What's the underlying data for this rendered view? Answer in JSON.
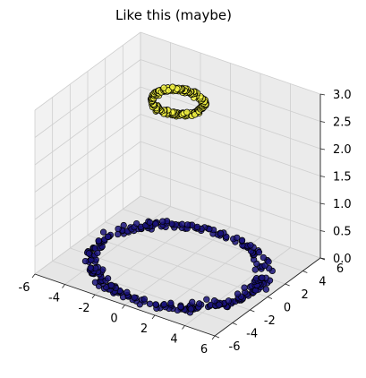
{
  "chart_data": {
    "type": "scatter",
    "projection": "3d",
    "title": "Like this (maybe)",
    "xlim": [
      -6,
      6
    ],
    "ylim": [
      -6,
      6
    ],
    "zlim": [
      0,
      3
    ],
    "xticks": [
      "-6",
      "-4",
      "-2",
      "0",
      "2",
      "4",
      "6"
    ],
    "yticks": [
      "-6",
      "-4",
      "-2",
      "0",
      "2",
      "4",
      "6"
    ],
    "zticks": [
      "0.0",
      "0.5",
      "1.0",
      "1.5",
      "2.0",
      "2.5",
      "3.0"
    ],
    "xtick_values": [
      -6,
      -4,
      -2,
      0,
      2,
      4,
      6
    ],
    "ytick_values": [
      -6,
      -4,
      -2,
      0,
      2,
      4,
      6
    ],
    "ztick_values": [
      0,
      0.5,
      1.0,
      1.5,
      2.0,
      2.5,
      3.0
    ],
    "grid": true,
    "series": [
      {
        "shape": "ring",
        "radius": 5.0,
        "z": 0.0,
        "count": 300,
        "color": "#1a137a",
        "edge": "#000000"
      },
      {
        "shape": "ring",
        "radius": 1.5,
        "z": 3.0,
        "count": 300,
        "color": "#f5f542",
        "edge": "#000000"
      }
    ]
  }
}
